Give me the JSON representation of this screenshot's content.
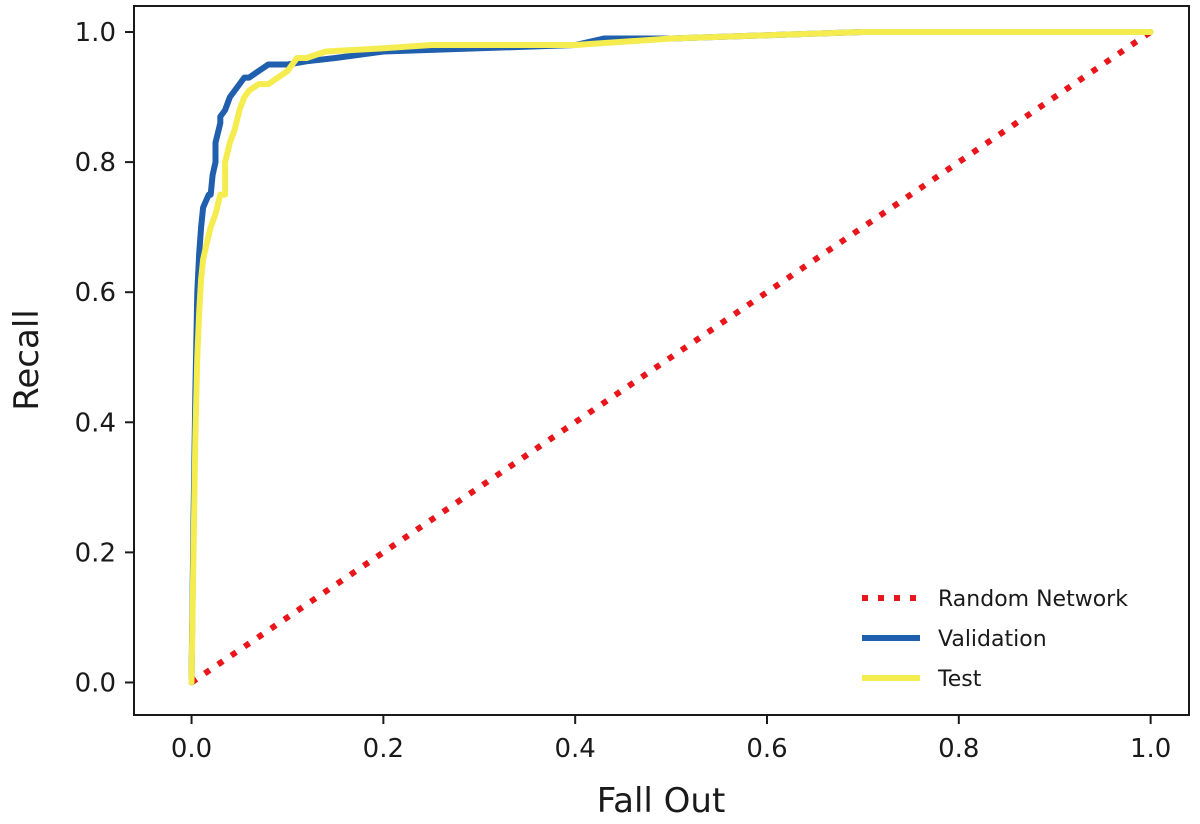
{
  "chart_data": {
    "type": "line",
    "title": "",
    "xlabel": "Fall Out",
    "ylabel": "Recall",
    "xlim": [
      -0.06,
      1.04
    ],
    "ylim": [
      -0.05,
      1.04
    ],
    "xticks": [
      0.0,
      0.2,
      0.4,
      0.6,
      0.8,
      1.0
    ],
    "xtick_labels": [
      "0.0",
      "0.2",
      "0.4",
      "0.6",
      "0.8",
      "1.0"
    ],
    "yticks": [
      0.0,
      0.2,
      0.4,
      0.6,
      0.8,
      1.0
    ],
    "ytick_labels": [
      "0.0",
      "0.2",
      "0.4",
      "0.6",
      "0.8",
      "1.0"
    ],
    "grid": false,
    "legend_position": "bottom-right",
    "series": [
      {
        "name": "Random Network",
        "color": "#e8151b",
        "style": "dotted",
        "x": [
          0.0,
          1.0
        ],
        "y": [
          0.0,
          1.0
        ]
      },
      {
        "name": "Validation",
        "color": "#1f5fae",
        "style": "solid",
        "x": [
          0.0,
          0.002,
          0.004,
          0.006,
          0.008,
          0.01,
          0.012,
          0.015,
          0.018,
          0.02,
          0.022,
          0.025,
          0.025,
          0.03,
          0.03,
          0.035,
          0.04,
          0.045,
          0.05,
          0.055,
          0.06,
          0.07,
          0.08,
          0.09,
          0.1,
          0.12,
          0.15,
          0.2,
          0.3,
          0.4,
          0.43,
          0.5,
          0.6,
          0.7,
          0.8,
          0.9,
          1.0
        ],
        "y": [
          0.0,
          0.25,
          0.45,
          0.6,
          0.66,
          0.7,
          0.73,
          0.74,
          0.75,
          0.75,
          0.78,
          0.8,
          0.83,
          0.86,
          0.87,
          0.88,
          0.9,
          0.91,
          0.92,
          0.93,
          0.93,
          0.94,
          0.95,
          0.95,
          0.95,
          0.955,
          0.96,
          0.97,
          0.975,
          0.98,
          0.99,
          0.99,
          0.995,
          1.0,
          1.0,
          1.0,
          1.0
        ]
      },
      {
        "name": "Test",
        "color": "#f5ed4f",
        "style": "solid",
        "x": [
          0.0,
          0.002,
          0.004,
          0.006,
          0.008,
          0.01,
          0.012,
          0.015,
          0.02,
          0.025,
          0.03,
          0.035,
          0.035,
          0.04,
          0.045,
          0.05,
          0.055,
          0.06,
          0.07,
          0.08,
          0.09,
          0.1,
          0.11,
          0.12,
          0.14,
          0.2,
          0.25,
          0.3,
          0.4,
          0.5,
          0.6,
          0.7,
          0.8,
          0.9,
          1.0
        ],
        "y": [
          0.0,
          0.2,
          0.38,
          0.5,
          0.57,
          0.62,
          0.65,
          0.67,
          0.7,
          0.72,
          0.75,
          0.75,
          0.8,
          0.83,
          0.85,
          0.88,
          0.9,
          0.91,
          0.92,
          0.92,
          0.93,
          0.94,
          0.96,
          0.96,
          0.97,
          0.975,
          0.98,
          0.98,
          0.98,
          0.99,
          0.995,
          1.0,
          1.0,
          1.0,
          1.0
        ]
      }
    ]
  }
}
